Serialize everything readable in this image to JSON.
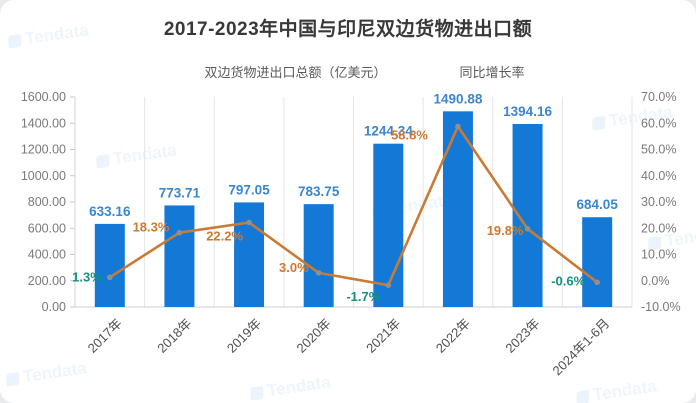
{
  "watermark": "Tendata",
  "chart_data": {
    "type": "bar",
    "combo": "bar+line",
    "title": "2017-2023年中国与印尼双边货物进出口额",
    "categories": [
      "2017年",
      "2018年",
      "2019年",
      "2020年",
      "2021年",
      "2022年",
      "2023年",
      "2024年1-6月"
    ],
    "series": [
      {
        "name": "双边货物进出口总额（亿美元）",
        "type": "bar",
        "axis": "left",
        "color": "#1478d6",
        "label_color": "#3a86d0",
        "values": [
          633.16,
          773.71,
          797.05,
          783.75,
          1244.34,
          1490.88,
          1394.16,
          684.05
        ],
        "labels": [
          "633.16",
          "773.71",
          "797.05",
          "783.75",
          "1244.34",
          "1490.88",
          "1394.16",
          "684.05"
        ]
      },
      {
        "name": "同比增长率",
        "type": "line",
        "axis": "right",
        "color": "#c87b35",
        "values": [
          1.3,
          18.3,
          22.2,
          3.0,
          -1.7,
          58.8,
          19.8,
          -0.6
        ],
        "labels": [
          "1.3%",
          "18.3%",
          "22.2%",
          "3.0%",
          "-1.7%",
          "58.8%",
          "19.8%",
          "-0.6%"
        ],
        "label_colors": [
          "#15917f",
          "#d2772e",
          "#d2772e",
          "#d2772e",
          "#15917f",
          "#d2772e",
          "#d2772e",
          "#15917f"
        ]
      }
    ],
    "left_axis": {
      "min": 0,
      "max": 1600,
      "step": 200,
      "ticks": [
        "1600.00",
        "1400.00",
        "1200.00",
        "1000.00",
        "800.00",
        "600.00",
        "400.00",
        "200.00",
        "0.00"
      ]
    },
    "right_axis": {
      "min": -10,
      "max": 70,
      "step": 10,
      "ticks": [
        "70.0%",
        "60.0%",
        "50.0%",
        "40.0%",
        "30.0%",
        "20.0%",
        "10.0%",
        "0.0%",
        "-10.0%"
      ]
    },
    "grid": "vertical-category-lines",
    "legend_position": "top-center"
  }
}
